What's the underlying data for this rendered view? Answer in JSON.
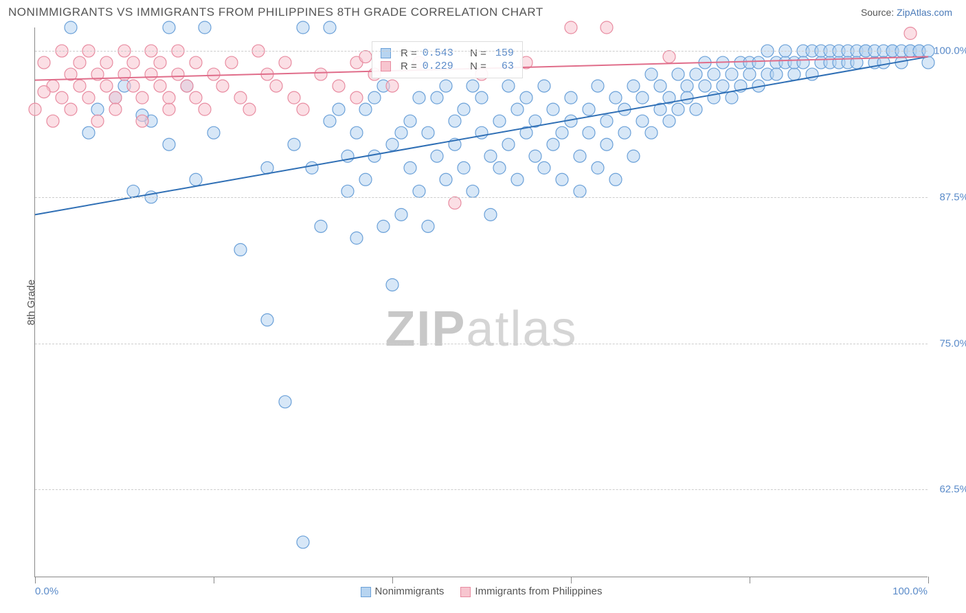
{
  "title": "NONIMMIGRANTS VS IMMIGRANTS FROM PHILIPPINES 8TH GRADE CORRELATION CHART",
  "source_prefix": "Source: ",
  "source_link": "ZipAtlas.com",
  "ylabel": "8th Grade",
  "watermark_bold": "ZIP",
  "watermark_light": "atlas",
  "chart": {
    "type": "scatter",
    "xlim": [
      0,
      100
    ],
    "ylim": [
      55,
      102
    ],
    "ytick_values": [
      62.5,
      75.0,
      87.5,
      100.0
    ],
    "ytick_labels": [
      "62.5%",
      "75.0%",
      "87.5%",
      "100.0%"
    ],
    "xtick_values": [
      0,
      20,
      40,
      60,
      80,
      100
    ],
    "x_min_label": "0.0%",
    "x_max_label": "100.0%",
    "background_color": "#ffffff",
    "grid_color": "#cccccc",
    "point_radius": 9,
    "point_stroke_width": 1.2,
    "line_width": 2,
    "series": [
      {
        "name": "Nonimmigrants",
        "fill": "#b7d4f0",
        "stroke": "#6aa0d8",
        "fill_opacity": 0.55,
        "line_color": "#2f6fb5",
        "R": "0.543",
        "N": "159",
        "regression": {
          "x1": 0,
          "y1": 86.0,
          "x2": 100,
          "y2": 99.5
        },
        "points": [
          [
            4,
            102
          ],
          [
            7,
            95
          ],
          [
            6,
            93
          ],
          [
            13,
            87.5
          ],
          [
            15,
            102
          ],
          [
            19,
            102
          ],
          [
            23,
            83
          ],
          [
            26,
            77
          ],
          [
            26,
            90
          ],
          [
            28,
            70
          ],
          [
            29,
            92
          ],
          [
            30,
            102
          ],
          [
            30,
            58
          ],
          [
            31,
            90
          ],
          [
            32,
            85
          ],
          [
            33,
            102
          ],
          [
            33,
            94
          ],
          [
            34,
            95
          ],
          [
            35,
            88
          ],
          [
            35,
            91
          ],
          [
            36,
            84
          ],
          [
            36,
            93
          ],
          [
            37,
            95
          ],
          [
            37,
            89
          ],
          [
            38,
            96
          ],
          [
            38,
            91
          ],
          [
            39,
            85
          ],
          [
            39,
            97
          ],
          [
            40,
            92
          ],
          [
            40,
            80
          ],
          [
            41,
            93
          ],
          [
            41,
            86
          ],
          [
            42,
            94
          ],
          [
            42,
            90
          ],
          [
            43,
            96
          ],
          [
            43,
            88
          ],
          [
            44,
            85
          ],
          [
            44,
            93
          ],
          [
            45,
            91
          ],
          [
            45,
            96
          ],
          [
            46,
            97
          ],
          [
            46,
            89
          ],
          [
            47,
            94
          ],
          [
            47,
            92
          ],
          [
            48,
            90
          ],
          [
            48,
            95
          ],
          [
            49,
            97
          ],
          [
            49,
            88
          ],
          [
            50,
            93
          ],
          [
            50,
            96
          ],
          [
            51,
            91
          ],
          [
            51,
            86
          ],
          [
            52,
            94
          ],
          [
            52,
            90
          ],
          [
            53,
            97
          ],
          [
            53,
            92
          ],
          [
            54,
            95
          ],
          [
            54,
            89
          ],
          [
            55,
            93
          ],
          [
            55,
            96
          ],
          [
            56,
            94
          ],
          [
            56,
            91
          ],
          [
            57,
            97
          ],
          [
            57,
            90
          ],
          [
            58,
            95
          ],
          [
            58,
            92
          ],
          [
            59,
            93
          ],
          [
            59,
            89
          ],
          [
            60,
            96
          ],
          [
            60,
            94
          ],
          [
            61,
            91
          ],
          [
            61,
            88
          ],
          [
            62,
            95
          ],
          [
            62,
            93
          ],
          [
            63,
            97
          ],
          [
            63,
            90
          ],
          [
            64,
            94
          ],
          [
            64,
            92
          ],
          [
            65,
            96
          ],
          [
            65,
            89
          ],
          [
            66,
            93
          ],
          [
            66,
            95
          ],
          [
            67,
            97
          ],
          [
            67,
            91
          ],
          [
            68,
            94
          ],
          [
            68,
            96
          ],
          [
            69,
            98
          ],
          [
            69,
            93
          ],
          [
            70,
            95
          ],
          [
            70,
            97
          ],
          [
            71,
            94
          ],
          [
            71,
            96
          ],
          [
            72,
            98
          ],
          [
            72,
            95
          ],
          [
            73,
            97
          ],
          [
            73,
            96
          ],
          [
            74,
            98
          ],
          [
            74,
            95
          ],
          [
            75,
            97
          ],
          [
            75,
            99
          ],
          [
            76,
            96
          ],
          [
            76,
            98
          ],
          [
            77,
            99
          ],
          [
            77,
            97
          ],
          [
            78,
            98
          ],
          [
            78,
            96
          ],
          [
            79,
            99
          ],
          [
            79,
            97
          ],
          [
            80,
            98
          ],
          [
            80,
            99
          ],
          [
            81,
            97
          ],
          [
            81,
            99
          ],
          [
            82,
            98
          ],
          [
            82,
            100
          ],
          [
            83,
            99
          ],
          [
            83,
            98
          ],
          [
            84,
            99
          ],
          [
            84,
            100
          ],
          [
            85,
            98
          ],
          [
            85,
            99
          ],
          [
            86,
            100
          ],
          [
            86,
            99
          ],
          [
            87,
            98
          ],
          [
            87,
            100
          ],
          [
            88,
            99
          ],
          [
            88,
            100
          ],
          [
            89,
            99
          ],
          [
            89,
            100
          ],
          [
            90,
            99
          ],
          [
            90,
            100
          ],
          [
            91,
            100
          ],
          [
            91,
            99
          ],
          [
            92,
            100
          ],
          [
            92,
            99
          ],
          [
            93,
            100
          ],
          [
            93,
            100
          ],
          [
            94,
            99
          ],
          [
            94,
            100
          ],
          [
            95,
            100
          ],
          [
            95,
            99
          ],
          [
            96,
            100
          ],
          [
            96,
            100
          ],
          [
            97,
            99
          ],
          [
            97,
            100
          ],
          [
            98,
            100
          ],
          [
            98,
            100
          ],
          [
            99,
            100
          ],
          [
            99,
            100
          ],
          [
            100,
            100
          ],
          [
            100,
            99
          ],
          [
            15,
            92
          ],
          [
            18,
            89
          ],
          [
            11,
            88
          ],
          [
            13,
            94
          ],
          [
            12,
            94.5
          ],
          [
            9,
            96
          ],
          [
            10,
            97
          ],
          [
            17,
            97
          ],
          [
            20,
            93
          ]
        ]
      },
      {
        "name": "Immigrants from Philippines",
        "fill": "#f7c5cf",
        "stroke": "#e88ba0",
        "fill_opacity": 0.55,
        "line_color": "#e06d8a",
        "R": "0.229",
        "N": "63",
        "regression": {
          "x1": 0,
          "y1": 97.5,
          "x2": 100,
          "y2": 99.5
        },
        "points": [
          [
            0,
            95
          ],
          [
            1,
            99
          ],
          [
            2,
            97
          ],
          [
            2,
            94
          ],
          [
            3,
            96
          ],
          [
            3,
            100
          ],
          [
            4,
            98
          ],
          [
            4,
            95
          ],
          [
            5,
            99
          ],
          [
            5,
            97
          ],
          [
            6,
            96
          ],
          [
            6,
            100
          ],
          [
            7,
            98
          ],
          [
            7,
            94
          ],
          [
            8,
            97
          ],
          [
            8,
            99
          ],
          [
            9,
            96
          ],
          [
            9,
            95
          ],
          [
            10,
            100
          ],
          [
            10,
            98
          ],
          [
            11,
            97
          ],
          [
            11,
            99
          ],
          [
            12,
            96
          ],
          [
            12,
            94
          ],
          [
            13,
            100
          ],
          [
            13,
            98
          ],
          [
            14,
            97
          ],
          [
            14,
            99
          ],
          [
            15,
            95
          ],
          [
            15,
            96
          ],
          [
            16,
            100
          ],
          [
            16,
            98
          ],
          [
            17,
            97
          ],
          [
            18,
            99
          ],
          [
            18,
            96
          ],
          [
            19,
            95
          ],
          [
            20,
            98
          ],
          [
            21,
            97
          ],
          [
            22,
            99
          ],
          [
            23,
            96
          ],
          [
            24,
            95
          ],
          [
            25,
            100
          ],
          [
            26,
            98
          ],
          [
            27,
            97
          ],
          [
            28,
            99
          ],
          [
            29,
            96
          ],
          [
            30,
            95
          ],
          [
            32,
            98
          ],
          [
            34,
            97
          ],
          [
            36,
            99
          ],
          [
            36,
            96
          ],
          [
            37,
            99.5
          ],
          [
            38,
            98
          ],
          [
            40,
            97
          ],
          [
            43,
            99
          ],
          [
            47,
            87
          ],
          [
            50,
            98
          ],
          [
            55,
            99
          ],
          [
            60,
            102
          ],
          [
            64,
            102
          ],
          [
            71,
            99.5
          ],
          [
            98,
            101.5
          ],
          [
            1,
            96.5
          ]
        ]
      }
    ],
    "legend_bottom": [
      {
        "label": "Nonimmigrants",
        "fill": "#b7d4f0",
        "stroke": "#6aa0d8"
      },
      {
        "label": "Immigrants from Philippines",
        "fill": "#f7c5cf",
        "stroke": "#e88ba0"
      }
    ]
  }
}
